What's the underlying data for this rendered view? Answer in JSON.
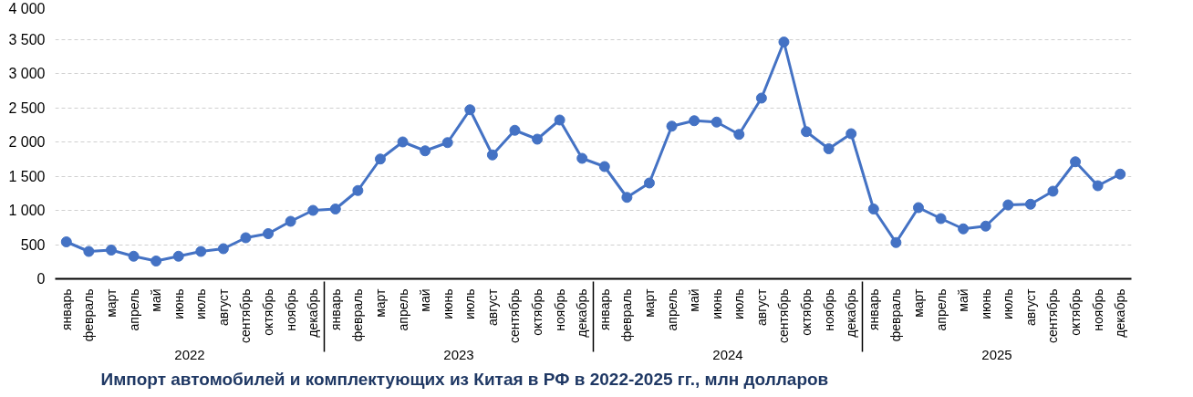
{
  "chart_data": {
    "type": "line",
    "title": "Импорт автомобилей и комплектующих из Китая в РФ в 2022-2025 гг., млн долларов",
    "categories": [
      "январь",
      "февраль",
      "март",
      "апрель",
      "май",
      "июнь",
      "июль",
      "август",
      "сентябрь",
      "октябрь",
      "ноябрь",
      "декабрь",
      "январь",
      "февраль",
      "март",
      "апрель",
      "май",
      "июнь",
      "июль",
      "август",
      "сентябрь",
      "октябрь",
      "ноябрь",
      "декабрь",
      "январь",
      "февраль",
      "март",
      "апрель",
      "май",
      "июнь",
      "июль",
      "август",
      "сентябрь",
      "октябрь",
      "ноябрь",
      "декабрь",
      "январь",
      "февраль",
      "март",
      "апрель",
      "май",
      "июнь",
      "июль",
      "август",
      "сентябрь",
      "октябрь",
      "ноябрь",
      "декабрь"
    ],
    "annotations": [
      "2022",
      "2023",
      "2024",
      "2025"
    ],
    "series": [
      {
        "color": "#4472c4",
        "values": [
          540,
          400,
          420,
          330,
          260,
          330,
          400,
          440,
          600,
          660,
          840,
          1000,
          1020,
          1290,
          1750,
          2000,
          1870,
          1990,
          2470,
          1810,
          2170,
          2040,
          2320,
          1760,
          1640,
          1190,
          1400,
          2230,
          2310,
          2290,
          2110,
          2640,
          3460,
          2150,
          1900,
          2120,
          1020,
          530,
          1040,
          880,
          730,
          770,
          1080,
          1090,
          1280,
          1710,
          1360,
          1530
        ]
      }
    ],
    "ylim": [
      0,
      4000
    ],
    "yticks": [
      0,
      500,
      {
        "value": 1000,
        "label": "1 000"
      },
      {
        "value": 1500,
        "label": "1 500"
      },
      {
        "value": 2000,
        "label": "2 000"
      },
      {
        "value": 2500,
        "label": "2 500"
      },
      {
        "value": 3000,
        "label": "3 000"
      },
      {
        "value": 3500,
        "label": "3 500"
      },
      {
        "value": 4000,
        "label": "4 000"
      }
    ],
    "grid": "y",
    "marker": "circle",
    "line_style": "solid"
  }
}
